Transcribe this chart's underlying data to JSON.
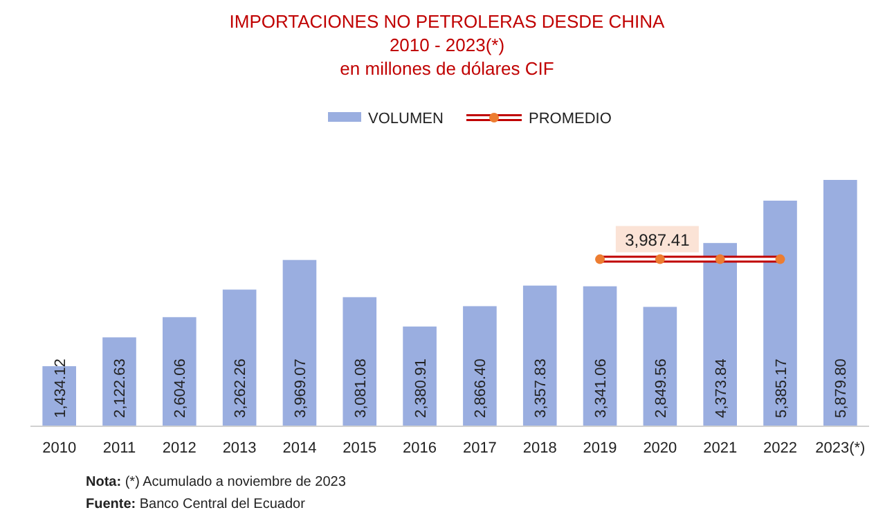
{
  "chart_data": {
    "type": "bar",
    "title": "IMPORTACIONES NO PETROLERAS DESDE CHINA\n2010 - 2023(*)",
    "subtitle": "en millones de dólares CIF",
    "categories": [
      "2010",
      "2011",
      "2012",
      "2013",
      "2014",
      "2015",
      "2016",
      "2017",
      "2018",
      "2019",
      "2020",
      "2021",
      "2022",
      "2023(*)"
    ],
    "series": [
      {
        "name": "VOLUMEN",
        "color": "#9aaee0",
        "values": [
          1434.12,
          2122.63,
          2604.06,
          3262.26,
          3969.07,
          3081.08,
          2380.91,
          2866.4,
          3357.83,
          3341.06,
          2849.56,
          4373.84,
          5385.17,
          5879.8
        ],
        "value_labels": [
          "1,434.12",
          "2,122.63",
          "2,604.06",
          "3,262.26",
          "3,969.07",
          "3,081.08",
          "2,380.91",
          "2,866.40",
          "3,357.83",
          "3,341.06",
          "2,849.56",
          "4,373.84",
          "5,385.17",
          "5,879.80"
        ]
      },
      {
        "name": "PROMEDIO",
        "type": "line",
        "color": "#c00000",
        "marker": "circle",
        "values": [
          null,
          null,
          null,
          null,
          null,
          null,
          null,
          null,
          null,
          3987.41,
          3987.41,
          3987.41,
          3987.41,
          null
        ]
      }
    ],
    "annotations": [
      {
        "text": "3,987.41",
        "x": "2020",
        "y": 3987.41
      },
      "Nota: (*) Acumulado a noviembre de 2023",
      "Fuente: Banco Central del Ecuador"
    ],
    "legend": "top",
    "grid": false
  }
}
